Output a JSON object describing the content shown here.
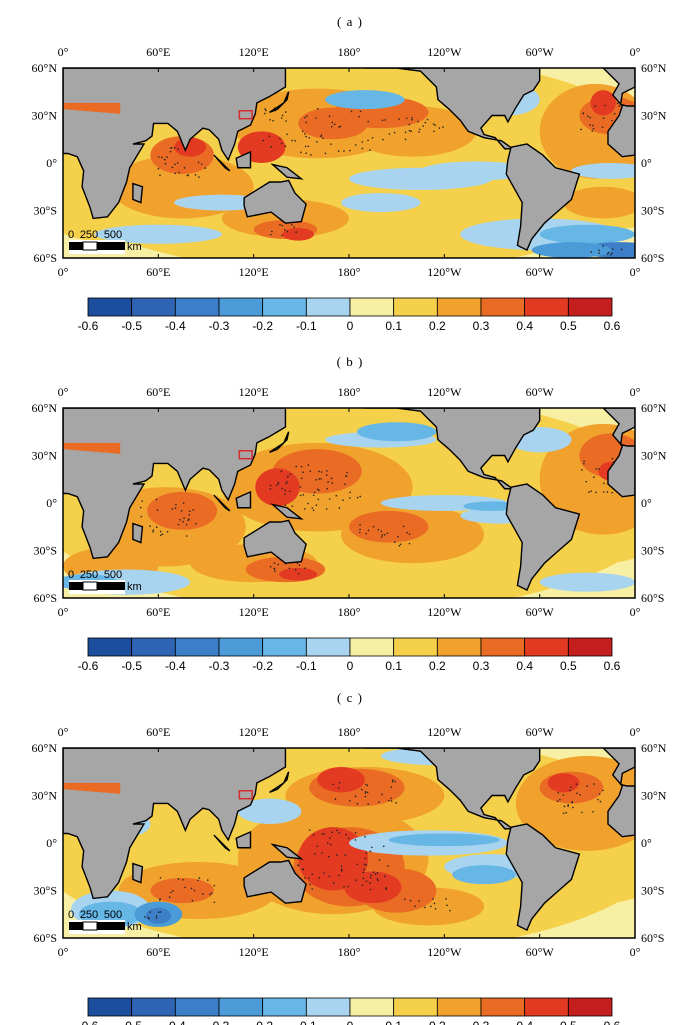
{
  "panels": [
    {
      "label": "( a )"
    },
    {
      "label": "( b )"
    },
    {
      "label": "( c )"
    }
  ],
  "axes": {
    "x_ticks": [
      "0°",
      "60°E",
      "120°E",
      "180°",
      "120°W",
      "60°W",
      "0°"
    ],
    "y_ticks_left": [
      "60°N",
      "30°N",
      "0°",
      "30°S",
      "60°S"
    ],
    "y_ticks_right": [
      "60°N",
      "30°N",
      "0°",
      "30°S",
      "60°S"
    ]
  },
  "scale_bar": {
    "labels": [
      "0",
      "250",
      "500"
    ],
    "unit": "km"
  },
  "colorbar": {
    "labels": [
      "-0.6",
      "-0.5",
      "-0.4",
      "-0.3",
      "-0.2",
      "-0.1",
      "0",
      "0.1",
      "0.2",
      "0.3",
      "0.4",
      "0.5",
      "0.6"
    ],
    "colors": [
      "#1d4e9e",
      "#2e64b3",
      "#3d7ec8",
      "#4a9bd8",
      "#66b6e6",
      "#a8d4ef",
      "#f7f0a4",
      "#f5d04a",
      "#f0a22c",
      "#ea6c24",
      "#e33a22",
      "#c41f1f"
    ]
  },
  "colors": {
    "land": "#a6a6a6",
    "coast": "#000000",
    "region_box": "#d62d2d"
  }
}
